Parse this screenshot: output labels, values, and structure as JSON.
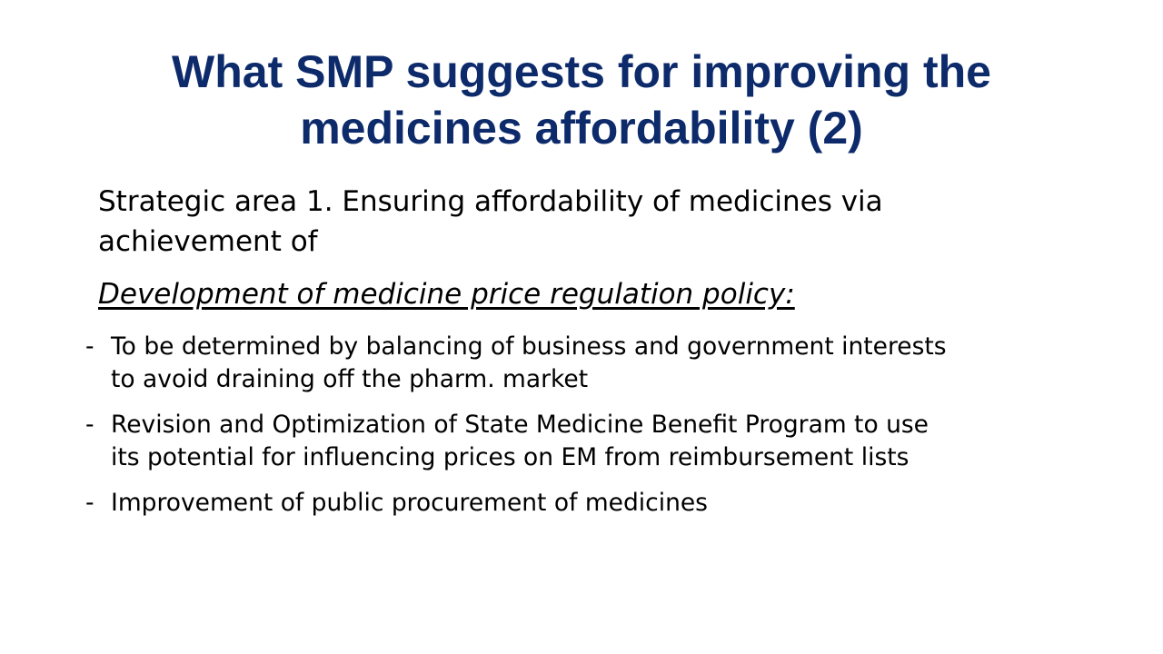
{
  "slide": {
    "title_lines": [
      "What SMP suggests for improving the",
      "medicines affordability (2)"
    ],
    "intro_lines": [
      "Strategic area 1. Ensuring affordability of medicines via",
      "achievement of"
    ],
    "subheading": "Development of medicine price regulation policy:",
    "bullet_marker": "-",
    "bullets": [
      {
        "lines": [
          "To be determined by balancing of business and government interests",
          "to avoid draining off the pharm. market"
        ]
      },
      {
        "lines": [
          "Revision and Optimization of State Medicine Benefit Program to use",
          "its potential for influencing prices on EM from reimbursement lists"
        ]
      },
      {
        "lines": [
          "Improvement of public procurement of medicines"
        ]
      }
    ]
  },
  "colors": {
    "title": "#0d2a6b",
    "body_text": "#000000",
    "background": "#ffffff"
  }
}
